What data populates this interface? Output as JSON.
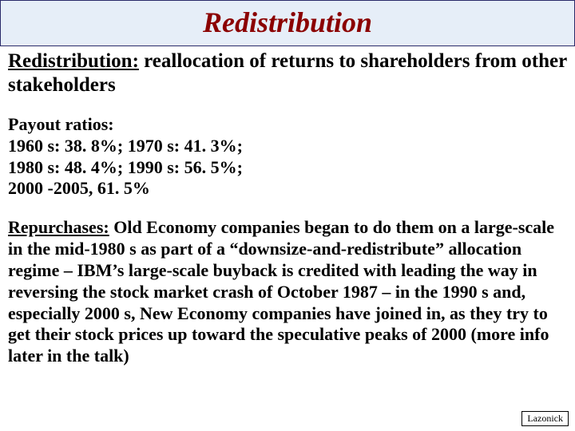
{
  "title": "Redistribution",
  "definition": {
    "term": "Redistribution:",
    "text": " reallocation of returns to shareholders from other stakeholders"
  },
  "payout": {
    "heading": "Payout ratios:",
    "line1": "1960 s: 38. 8%; 1970 s: 41. 3%;",
    "line2": "1980 s: 48. 4%; 1990 s: 56. 5%;",
    "line3": "2000 -2005, 61. 5%"
  },
  "repurchases": {
    "term": "Repurchases:",
    "text": " Old Economy companies began to do them on a large-scale in the mid-1980 s as part of a “downsize-and-redistribute” allocation regime – IBM’s large-scale buyback is credited with leading the way in reversing the stock market crash of October 1987 – in the 1990 s and, especially 2000 s, New Economy companies have joined in, as they try to get their stock prices up toward the speculative peaks of 2000 (more info later in the talk)"
  },
  "footer": "Lazonick",
  "colors": {
    "title_bg": "#e6eef8",
    "title_border": "#2a2a6a",
    "title_color": "#8b0000",
    "body_color": "#000000",
    "background": "#ffffff"
  }
}
